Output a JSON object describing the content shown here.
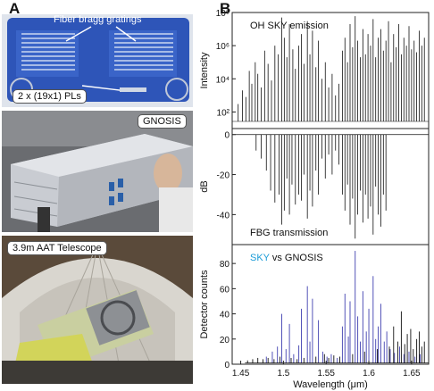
{
  "panel_a": {
    "letter": "A",
    "photo1": {
      "label": "Fiber bragg gratings",
      "callout": "2 x (19x1) PLs"
    },
    "photo2": {
      "label": "GNOSIS"
    },
    "photo3": {
      "label": "3.9m AAT Telescope"
    }
  },
  "panel_b": {
    "letter": "B"
  },
  "colors": {
    "sky": "#1a9bd7",
    "gnosis_line": "#111111",
    "sky_line": "#4040b0",
    "plate_blue": "#2e55b8"
  },
  "chart_data": [
    {
      "type": "line",
      "title": "OH SKY emission",
      "ylabel": "Intensity",
      "yscale": "log",
      "ylim": [
        10,
        100000000
      ],
      "yticks": [
        {
          "value": 100,
          "label": "10²"
        },
        {
          "value": 10000,
          "label": "10⁴"
        },
        {
          "value": 1000000,
          "label": "10⁶"
        },
        {
          "value": 100000000,
          "label": "10⁸"
        }
      ],
      "xlim": [
        1.44,
        1.67
      ],
      "lines": [
        {
          "x": 1.447,
          "y": 300
        },
        {
          "x": 1.452,
          "y": 2000
        },
        {
          "x": 1.456,
          "y": 800
        },
        {
          "x": 1.46,
          "y": 30000
        },
        {
          "x": 1.463,
          "y": 5000
        },
        {
          "x": 1.467,
          "y": 100000
        },
        {
          "x": 1.47,
          "y": 20000
        },
        {
          "x": 1.474,
          "y": 3000
        },
        {
          "x": 1.478,
          "y": 500000
        },
        {
          "x": 1.482,
          "y": 80000
        },
        {
          "x": 1.486,
          "y": 8000
        },
        {
          "x": 1.49,
          "y": 1000000
        },
        {
          "x": 1.494,
          "y": 300000
        },
        {
          "x": 1.498,
          "y": 50000000
        },
        {
          "x": 1.501,
          "y": 3000000
        },
        {
          "x": 1.504,
          "y": 200000
        },
        {
          "x": 1.507,
          "y": 20000000
        },
        {
          "x": 1.511,
          "y": 600000
        },
        {
          "x": 1.514,
          "y": 40000
        },
        {
          "x": 1.518,
          "y": 1000000
        },
        {
          "x": 1.521,
          "y": 5000000
        },
        {
          "x": 1.524,
          "y": 80000
        },
        {
          "x": 1.528,
          "y": 30000000
        },
        {
          "x": 1.531,
          "y": 300000
        },
        {
          "x": 1.534,
          "y": 8000000
        },
        {
          "x": 1.538,
          "y": 50000
        },
        {
          "x": 1.541,
          "y": 2000000
        },
        {
          "x": 1.545,
          "y": 10000
        },
        {
          "x": 1.549,
          "y": 100000
        },
        {
          "x": 1.553,
          "y": 3000
        },
        {
          "x": 1.557,
          "y": 20000
        },
        {
          "x": 1.561,
          "y": 1000
        },
        {
          "x": 1.565,
          "y": 5000
        },
        {
          "x": 1.569,
          "y": 500000
        },
        {
          "x": 1.572,
          "y": 3000000
        },
        {
          "x": 1.575,
          "y": 100000
        },
        {
          "x": 1.578,
          "y": 20000000
        },
        {
          "x": 1.581,
          "y": 800000
        },
        {
          "x": 1.584,
          "y": 60000000
        },
        {
          "x": 1.587,
          "y": 2000000
        },
        {
          "x": 1.59,
          "y": 200000
        },
        {
          "x": 1.593,
          "y": 10000000
        },
        {
          "x": 1.596,
          "y": 300000
        },
        {
          "x": 1.599,
          "y": 5000000
        },
        {
          "x": 1.602,
          "y": 1000000
        },
        {
          "x": 1.605,
          "y": 40000000
        },
        {
          "x": 1.608,
          "y": 200000
        },
        {
          "x": 1.611,
          "y": 3000000
        },
        {
          "x": 1.614,
          "y": 10000000
        },
        {
          "x": 1.617,
          "y": 500000
        },
        {
          "x": 1.62,
          "y": 2000000
        },
        {
          "x": 1.623,
          "y": 30000000
        },
        {
          "x": 1.626,
          "y": 100000
        },
        {
          "x": 1.629,
          "y": 5000000
        },
        {
          "x": 1.632,
          "y": 800000
        },
        {
          "x": 1.635,
          "y": 20000000
        },
        {
          "x": 1.638,
          "y": 300000
        },
        {
          "x": 1.641,
          "y": 3000000
        },
        {
          "x": 1.644,
          "y": 1000000
        },
        {
          "x": 1.647,
          "y": 15000000
        },
        {
          "x": 1.65,
          "y": 600000
        },
        {
          "x": 1.653,
          "y": 2000000
        },
        {
          "x": 1.656,
          "y": 400000
        },
        {
          "x": 1.659,
          "y": 8000000
        },
        {
          "x": 1.662,
          "y": 1000000
        },
        {
          "x": 1.665,
          "y": 3000000
        }
      ]
    },
    {
      "type": "line",
      "title": "FBG transmission",
      "ylabel": "dB",
      "ylim": [
        -55,
        3
      ],
      "yticks": [
        {
          "value": 0,
          "label": "0"
        },
        {
          "value": -20,
          "label": "-20"
        },
        {
          "value": -40,
          "label": "-40"
        }
      ],
      "xlim": [
        1.44,
        1.67
      ],
      "lines": [
        {
          "x": 1.468,
          "y": -8
        },
        {
          "x": 1.474,
          "y": -12
        },
        {
          "x": 1.48,
          "y": -18
        },
        {
          "x": 1.485,
          "y": -28
        },
        {
          "x": 1.49,
          "y": -34
        },
        {
          "x": 1.495,
          "y": -30
        },
        {
          "x": 1.498,
          "y": -45
        },
        {
          "x": 1.501,
          "y": -38
        },
        {
          "x": 1.504,
          "y": -22
        },
        {
          "x": 1.507,
          "y": -40
        },
        {
          "x": 1.51,
          "y": -25
        },
        {
          "x": 1.514,
          "y": -35
        },
        {
          "x": 1.518,
          "y": -30
        },
        {
          "x": 1.521,
          "y": -33
        },
        {
          "x": 1.524,
          "y": -20
        },
        {
          "x": 1.528,
          "y": -42
        },
        {
          "x": 1.531,
          "y": -28
        },
        {
          "x": 1.534,
          "y": -36
        },
        {
          "x": 1.538,
          "y": -18
        },
        {
          "x": 1.541,
          "y": -30
        },
        {
          "x": 1.545,
          "y": -12
        },
        {
          "x": 1.549,
          "y": -22
        },
        {
          "x": 1.553,
          "y": -10
        },
        {
          "x": 1.557,
          "y": -20
        },
        {
          "x": 1.561,
          "y": -8
        },
        {
          "x": 1.565,
          "y": -15
        },
        {
          "x": 1.569,
          "y": -30
        },
        {
          "x": 1.572,
          "y": -38
        },
        {
          "x": 1.575,
          "y": -25
        },
        {
          "x": 1.578,
          "y": -45
        },
        {
          "x": 1.581,
          "y": -32
        },
        {
          "x": 1.584,
          "y": -52
        },
        {
          "x": 1.587,
          "y": -40
        },
        {
          "x": 1.59,
          "y": -28
        },
        {
          "x": 1.593,
          "y": -44
        },
        {
          "x": 1.596,
          "y": -30
        },
        {
          "x": 1.599,
          "y": -42
        },
        {
          "x": 1.602,
          "y": -36
        },
        {
          "x": 1.605,
          "y": -50
        },
        {
          "x": 1.608,
          "y": -26
        },
        {
          "x": 1.611,
          "y": -40
        },
        {
          "x": 1.614,
          "y": -46
        },
        {
          "x": 1.617,
          "y": -30
        },
        {
          "x": 1.62,
          "y": -38
        }
      ]
    },
    {
      "type": "line",
      "title_parts": [
        "SKY",
        " vs GNOSIS"
      ],
      "ylabel": "Detector counts",
      "ylim": [
        0,
        95
      ],
      "yticks": [
        {
          "value": 0,
          "label": "0"
        },
        {
          "value": 20,
          "label": "20"
        },
        {
          "value": 40,
          "label": "40"
        },
        {
          "value": 60,
          "label": "60"
        },
        {
          "value": 80,
          "label": "80"
        }
      ],
      "xlabel": "Wavelength (μm)",
      "xlim": [
        1.44,
        1.67
      ],
      "xticks": [
        {
          "value": 1.45,
          "label": "1.45"
        },
        {
          "value": 1.5,
          "label": "1.5"
        },
        {
          "value": 1.55,
          "label": "1.55"
        },
        {
          "value": 1.6,
          "label": "1.6"
        },
        {
          "value": 1.65,
          "label": "1.65"
        }
      ],
      "series": [
        {
          "name": "SKY",
          "peaks": [
            {
              "x": 1.48,
              "y": 6
            },
            {
              "x": 1.487,
              "y": 10
            },
            {
              "x": 1.493,
              "y": 14
            },
            {
              "x": 1.498,
              "y": 40
            },
            {
              "x": 1.503,
              "y": 12
            },
            {
              "x": 1.507,
              "y": 32
            },
            {
              "x": 1.512,
              "y": 8
            },
            {
              "x": 1.518,
              "y": 15
            },
            {
              "x": 1.521,
              "y": 44
            },
            {
              "x": 1.528,
              "y": 62
            },
            {
              "x": 1.531,
              "y": 18
            },
            {
              "x": 1.534,
              "y": 52
            },
            {
              "x": 1.541,
              "y": 35
            },
            {
              "x": 1.546,
              "y": 10
            },
            {
              "x": 1.551,
              "y": 6
            },
            {
              "x": 1.556,
              "y": 8
            },
            {
              "x": 1.563,
              "y": 5
            },
            {
              "x": 1.569,
              "y": 30
            },
            {
              "x": 1.572,
              "y": 56
            },
            {
              "x": 1.576,
              "y": 22
            },
            {
              "x": 1.578,
              "y": 50
            },
            {
              "x": 1.584,
              "y": 90
            },
            {
              "x": 1.587,
              "y": 38
            },
            {
              "x": 1.59,
              "y": 18
            },
            {
              "x": 1.593,
              "y": 58
            },
            {
              "x": 1.597,
              "y": 26
            },
            {
              "x": 1.6,
              "y": 44
            },
            {
              "x": 1.605,
              "y": 70
            },
            {
              "x": 1.608,
              "y": 20
            },
            {
              "x": 1.611,
              "y": 30
            },
            {
              "x": 1.614,
              "y": 48
            },
            {
              "x": 1.618,
              "y": 18
            },
            {
              "x": 1.621,
              "y": 26
            },
            {
              "x": 1.625,
              "y": 12
            },
            {
              "x": 1.63,
              "y": 9
            },
            {
              "x": 1.636,
              "y": 14
            },
            {
              "x": 1.641,
              "y": 8
            },
            {
              "x": 1.647,
              "y": 10
            },
            {
              "x": 1.654,
              "y": 6
            },
            {
              "x": 1.66,
              "y": 8
            }
          ]
        },
        {
          "name": "GNOSIS",
          "peaks": [
            {
              "x": 1.458,
              "y": 3
            },
            {
              "x": 1.464,
              "y": 4
            },
            {
              "x": 1.47,
              "y": 5
            },
            {
              "x": 1.476,
              "y": 4
            },
            {
              "x": 1.482,
              "y": 5
            },
            {
              "x": 1.489,
              "y": 4
            },
            {
              "x": 1.496,
              "y": 6
            },
            {
              "x": 1.509,
              "y": 5
            },
            {
              "x": 1.516,
              "y": 4
            },
            {
              "x": 1.524,
              "y": 5
            },
            {
              "x": 1.538,
              "y": 6
            },
            {
              "x": 1.548,
              "y": 8
            },
            {
              "x": 1.553,
              "y": 5
            },
            {
              "x": 1.559,
              "y": 7
            },
            {
              "x": 1.566,
              "y": 6
            },
            {
              "x": 1.581,
              "y": 8
            },
            {
              "x": 1.595,
              "y": 10
            },
            {
              "x": 1.61,
              "y": 12
            },
            {
              "x": 1.624,
              "y": 14
            },
            {
              "x": 1.629,
              "y": 30
            },
            {
              "x": 1.634,
              "y": 18
            },
            {
              "x": 1.638,
              "y": 42
            },
            {
              "x": 1.642,
              "y": 16
            },
            {
              "x": 1.645,
              "y": 24
            },
            {
              "x": 1.649,
              "y": 28
            },
            {
              "x": 1.652,
              "y": 12
            },
            {
              "x": 1.656,
              "y": 20
            },
            {
              "x": 1.659,
              "y": 26
            },
            {
              "x": 1.662,
              "y": 14
            },
            {
              "x": 1.665,
              "y": 18
            }
          ]
        }
      ]
    }
  ]
}
